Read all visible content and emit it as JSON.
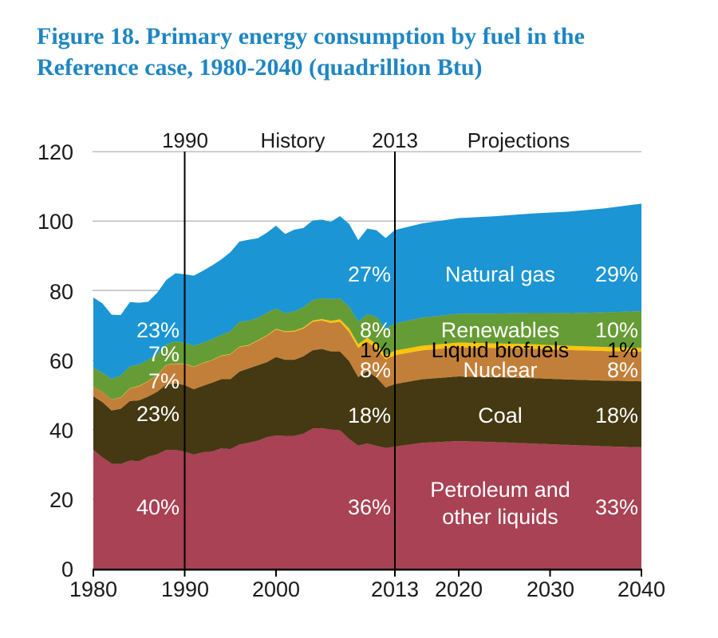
{
  "title": {
    "line1": "Figure 18. Primary energy consumption by fuel in the",
    "line2": "Reference case, 1980-2040 (quadrillion Btu)"
  },
  "colors": {
    "title_blue": "#1F86C2",
    "grid": "#BFBFBF",
    "axis": "#000000",
    "divider": "#000000"
  },
  "chart_data": {
    "type": "area",
    "stacked": true,
    "title": "Primary energy consumption by fuel in the Reference case, 1980-2040",
    "units": "quadrillion Btu",
    "xlabel": "",
    "ylabel": "",
    "xlim": [
      1980,
      2040
    ],
    "ylim": [
      0,
      120
    ],
    "grid": "horizontal",
    "legend_position": "in-plot labels",
    "dividers": [
      1990,
      2013
    ],
    "top_labels": {
      "year_left": "1990",
      "history": "History",
      "year_right": "2013",
      "projections": "Projections"
    },
    "y_ticks": [
      {
        "label": "120",
        "value": 120
      },
      {
        "label": "100",
        "value": 100
      },
      {
        "label": "80",
        "value": 80
      },
      {
        "label": "60",
        "value": 60
      },
      {
        "label": "40",
        "value": 40
      },
      {
        "label": "20",
        "value": 20
      },
      {
        "label": "0",
        "value": 0
      }
    ],
    "x_ticks": [
      {
        "label": "1980",
        "year": 1980
      },
      {
        "label": "1990",
        "year": 1990
      },
      {
        "label": "2000",
        "year": 2000
      },
      {
        "label": "2013",
        "year": 2013
      },
      {
        "label": "2020",
        "year": 2020
      },
      {
        "label": "2030",
        "year": 2030
      },
      {
        "label": "2040",
        "year": 2040
      }
    ],
    "x": [
      1980,
      1981,
      1982,
      1983,
      1984,
      1985,
      1986,
      1987,
      1988,
      1989,
      1990,
      1991,
      1992,
      1993,
      1994,
      1995,
      1996,
      1997,
      1998,
      1999,
      2000,
      2001,
      2002,
      2003,
      2004,
      2005,
      2006,
      2007,
      2008,
      2009,
      2010,
      2011,
      2012,
      2013,
      2016,
      2020,
      2024,
      2028,
      2032,
      2036,
      2040
    ],
    "series": [
      {
        "key": "petroleum",
        "name": "Petroleum and other liquids",
        "color": "#A84254",
        "values": [
          34.2,
          32.0,
          30.2,
          30.1,
          31.1,
          30.9,
          32.2,
          32.9,
          34.2,
          34.2,
          33.6,
          32.8,
          33.5,
          33.7,
          34.6,
          34.4,
          35.7,
          36.2,
          36.8,
          37.8,
          38.3,
          38.2,
          38.2,
          38.8,
          40.3,
          40.4,
          40.0,
          39.8,
          37.3,
          35.4,
          36.0,
          35.3,
          34.7,
          35.1,
          36.2,
          36.7,
          36.4,
          36.0,
          35.6,
          35.2,
          34.9
        ]
      },
      {
        "key": "coal",
        "name": "Coal",
        "color": "#443912",
        "values": [
          15.4,
          15.9,
          15.3,
          15.9,
          17.1,
          17.5,
          17.3,
          18.0,
          18.8,
          19.1,
          19.2,
          18.8,
          19.1,
          19.8,
          19.9,
          20.1,
          21.0,
          21.4,
          21.7,
          21.6,
          22.6,
          21.9,
          21.9,
          22.3,
          22.5,
          22.8,
          22.5,
          22.7,
          22.4,
          19.7,
          20.8,
          19.7,
          17.4,
          18.0,
          18.3,
          18.6,
          18.7,
          18.8,
          18.8,
          18.9,
          19.0
        ]
      },
      {
        "key": "nuclear",
        "name": "Nuclear",
        "color": "#C27F39",
        "values": [
          2.7,
          3.0,
          3.1,
          3.2,
          3.6,
          4.1,
          4.4,
          4.8,
          5.6,
          5.6,
          6.1,
          6.4,
          6.5,
          6.4,
          6.7,
          7.1,
          7.1,
          6.6,
          7.1,
          7.6,
          7.9,
          8.0,
          8.1,
          8.0,
          8.2,
          8.2,
          8.2,
          8.5,
          8.4,
          8.4,
          8.4,
          8.3,
          8.1,
          8.3,
          8.3,
          8.4,
          8.4,
          8.5,
          8.5,
          8.5,
          8.5
        ]
      },
      {
        "key": "liquid_biofuels",
        "name": "Liquid biofuels",
        "color": "#FFC40C",
        "values": [
          0.0,
          0.0,
          0.05,
          0.07,
          0.08,
          0.09,
          0.09,
          0.09,
          0.09,
          0.09,
          0.09,
          0.09,
          0.1,
          0.12,
          0.13,
          0.12,
          0.1,
          0.13,
          0.14,
          0.15,
          0.17,
          0.18,
          0.22,
          0.29,
          0.35,
          0.41,
          0.57,
          0.72,
          0.99,
          1.1,
          1.22,
          1.25,
          1.2,
          1.3,
          1.32,
          1.35,
          1.3,
          1.25,
          1.2,
          1.15,
          1.1
        ]
      },
      {
        "key": "renewables",
        "name": "Renewables",
        "color": "#669C35",
        "values": [
          5.5,
          5.5,
          5.9,
          6.3,
          6.3,
          6.1,
          6.1,
          5.9,
          5.8,
          6.4,
          6.0,
          6.1,
          5.8,
          6.0,
          5.9,
          6.6,
          7.1,
          7.0,
          6.4,
          6.5,
          5.9,
          5.2,
          5.6,
          5.8,
          5.9,
          6.0,
          6.3,
          6.0,
          6.3,
          6.5,
          6.8,
          7.9,
          7.6,
          7.8,
          8.1,
          8.3,
          8.6,
          9.0,
          9.4,
          10.0,
          10.6
        ]
      },
      {
        "key": "natural_gas",
        "name": "Natural gas",
        "color": "#1B95D4",
        "values": [
          20.2,
          19.9,
          18.5,
          17.4,
          18.5,
          17.8,
          16.7,
          17.7,
          18.6,
          19.6,
          19.7,
          20.1,
          20.7,
          21.2,
          21.7,
          22.7,
          23.1,
          23.3,
          22.9,
          23.0,
          23.8,
          22.8,
          23.5,
          22.8,
          22.9,
          22.6,
          22.2,
          23.7,
          23.8,
          23.4,
          24.6,
          24.9,
          26.1,
          26.9,
          27.1,
          27.5,
          28.0,
          28.6,
          29.2,
          29.9,
          30.9
        ]
      }
    ],
    "annotations": {
      "category": {
        "natural_gas": "Natural gas",
        "renewables": "Renewables",
        "liquid_biofuels": "Liquid biofuels",
        "nuclear": "Nuclear",
        "coal": "Coal",
        "petroleum": "Petroleum and\nother liquids"
      },
      "at_1990": {
        "natural_gas": "23%",
        "renewables": "7%",
        "nuclear": "7%",
        "coal": "23%",
        "petroleum": "40%"
      },
      "at_2013": {
        "natural_gas": "27%",
        "renewables": "8%",
        "liquid_biofuels": "1%",
        "nuclear": "8%",
        "coal": "18%",
        "petroleum": "36%"
      },
      "at_2040": {
        "natural_gas": "29%",
        "renewables": "10%",
        "liquid_biofuels": "1%",
        "nuclear": "8%",
        "coal": "18%",
        "petroleum": "33%"
      }
    }
  }
}
